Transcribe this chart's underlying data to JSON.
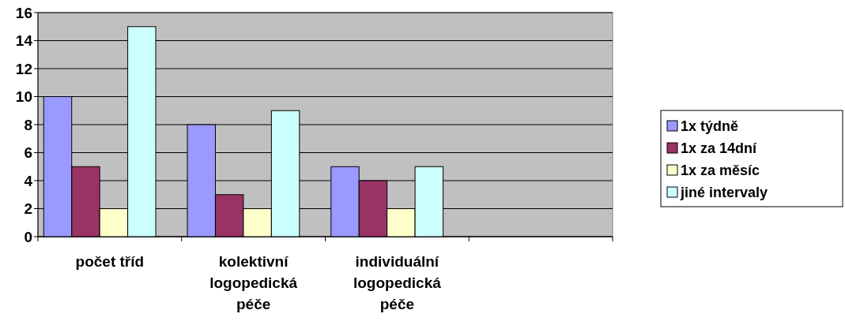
{
  "chart_data": {
    "type": "bar",
    "categories": [
      "počet tříd",
      "kolektivní logopedická péče",
      "individuální logopedická péče",
      null
    ],
    "series": [
      {
        "name": "1x týdně",
        "color": "#9999ff",
        "values": [
          10,
          8,
          5,
          null
        ]
      },
      {
        "name": "1x za 14dní",
        "color": "#993366",
        "values": [
          5,
          3,
          4,
          null
        ]
      },
      {
        "name": "1x za měsíc",
        "color": "#ffffcc",
        "values": [
          2,
          2,
          2,
          null
        ]
      },
      {
        "name": "jiné intervaly",
        "color": "#ccffff",
        "values": [
          15,
          9,
          5,
          null
        ]
      }
    ],
    "ylim": [
      0,
      16
    ],
    "yticks": [
      0,
      2,
      4,
      6,
      8,
      10,
      12,
      14,
      16
    ],
    "grid": "y",
    "legend": "right"
  }
}
